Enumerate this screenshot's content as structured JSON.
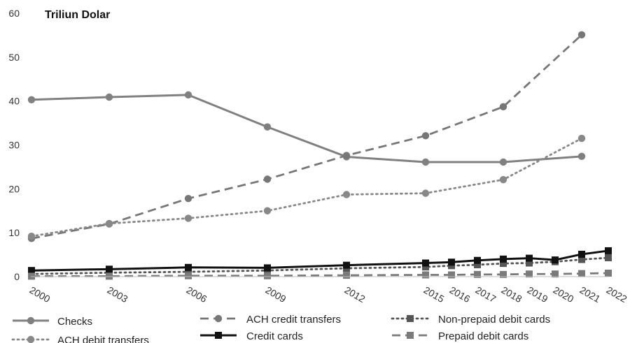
{
  "chart_data": {
    "type": "line",
    "title": "Triliun Dolar",
    "xlabel": "",
    "ylabel": "",
    "ylim": [
      0,
      60
    ],
    "yticks": [
      0,
      10,
      20,
      30,
      40,
      50,
      60
    ],
    "x": [
      "2000",
      "2003",
      "2006",
      "2009",
      "2012",
      "2015",
      "2016",
      "2017",
      "2018",
      "2019",
      "2020",
      "2021",
      "2022"
    ],
    "grid": false,
    "legend_position": "bottom",
    "series": [
      {
        "name": "Checks",
        "color": "#808080",
        "style": "solid",
        "marker": "circle",
        "x": [
          "2000",
          "2003",
          "2006",
          "2009",
          "2012",
          "2015",
          "2018",
          "2021"
        ],
        "values": [
          40.3,
          40.9,
          41.4,
          34.1,
          27.3,
          26.1,
          26.1,
          27.4
        ]
      },
      {
        "name": "ACH credit transfers",
        "color": "#777777",
        "style": "dashed",
        "marker": "circle",
        "x": [
          "2000",
          "2003",
          "2006",
          "2009",
          "2012",
          "2015",
          "2018",
          "2021"
        ],
        "values": [
          8.7,
          12.0,
          17.8,
          22.2,
          27.6,
          32.1,
          38.7,
          55.1
        ]
      },
      {
        "name": "Non-prepaid debit cards",
        "color": "#555555",
        "style": "dotted",
        "marker": "square",
        "x": [
          "2000",
          "2003",
          "2006",
          "2009",
          "2012",
          "2015",
          "2016",
          "2017",
          "2018",
          "2019",
          "2020",
          "2021",
          "2022"
        ],
        "values": [
          0.6,
          0.9,
          1.1,
          1.4,
          1.9,
          2.2,
          2.5,
          2.7,
          3.0,
          3.1,
          3.4,
          3.9,
          4.3
        ]
      },
      {
        "name": "ACH debit transfers",
        "color": "#888888",
        "style": "dotted",
        "marker": "circle",
        "x": [
          "2000",
          "2003",
          "2006",
          "2009",
          "2012",
          "2015",
          "2018",
          "2021"
        ],
        "values": [
          9.2,
          12.1,
          13.3,
          15.0,
          18.7,
          19.0,
          22.1,
          31.5
        ]
      },
      {
        "name": "Credit cards",
        "color": "#111111",
        "style": "solid",
        "marker": "square",
        "x": [
          "2000",
          "2003",
          "2006",
          "2009",
          "2012",
          "2015",
          "2016",
          "2017",
          "2018",
          "2019",
          "2020",
          "2021",
          "2022"
        ],
        "values": [
          1.4,
          1.7,
          2.1,
          2.0,
          2.6,
          3.1,
          3.3,
          3.7,
          4.0,
          4.2,
          3.8,
          5.1,
          5.9
        ]
      },
      {
        "name": "Prepaid debit cards",
        "color": "#7a7a7a",
        "style": "dashed",
        "marker": "square",
        "x": [
          "2000",
          "2003",
          "2006",
          "2009",
          "2012",
          "2015",
          "2016",
          "2017",
          "2018",
          "2019",
          "2020",
          "2021",
          "2022"
        ],
        "values": [
          0.1,
          0.1,
          0.2,
          0.2,
          0.3,
          0.4,
          0.4,
          0.5,
          0.5,
          0.6,
          0.6,
          0.7,
          0.8
        ]
      }
    ]
  }
}
